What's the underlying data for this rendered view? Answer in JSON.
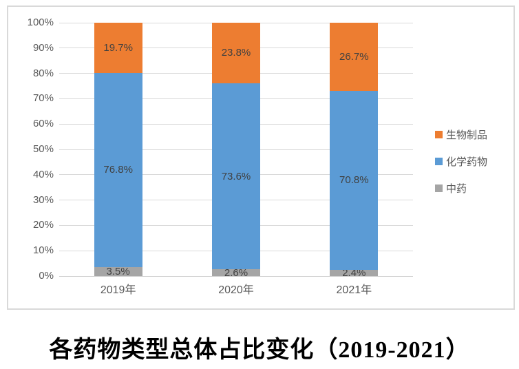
{
  "title": {
    "text": "各药物类型总体占比变化（2019-2021）"
  },
  "colors": {
    "orange": "#ED7D31",
    "blue": "#5B9BD5",
    "gray": "#A5A5A5",
    "gridline": "#D9D9D9",
    "frame_border": "#D9D9D9",
    "tick_label": "#595959",
    "data_label": "#404040",
    "title": "#000000"
  },
  "chart_data": {
    "type": "bar",
    "subtype": "stacked-100-percent-column",
    "title": "各药物类型总体占比变化（2019-2021）",
    "xlabel": "",
    "ylabel": "",
    "categories": [
      "2019年",
      "2020年",
      "2021年"
    ],
    "series": [
      {
        "name": "中药",
        "color": "#A5A5A5",
        "values": [
          3.5,
          2.6,
          2.4
        ],
        "labels": [
          "3.5%",
          "2.6%",
          "2.4%"
        ]
      },
      {
        "name": "化学药物",
        "color": "#5B9BD5",
        "values": [
          76.8,
          73.6,
          70.8
        ],
        "labels": [
          "76.8%",
          "73.6%",
          "70.8%"
        ]
      },
      {
        "name": "生物制品",
        "color": "#ED7D31",
        "values": [
          19.7,
          23.8,
          26.7
        ],
        "labels": [
          "19.7%",
          "23.8%",
          "26.7%"
        ]
      }
    ],
    "legend": {
      "position": "right",
      "items": [
        "生物制品",
        "化学药物",
        "中药"
      ]
    },
    "yticks": [
      "0%",
      "10%",
      "20%",
      "30%",
      "40%",
      "50%",
      "60%",
      "70%",
      "80%",
      "90%",
      "100%"
    ],
    "ylim": [
      0,
      100
    ],
    "grid": true
  }
}
